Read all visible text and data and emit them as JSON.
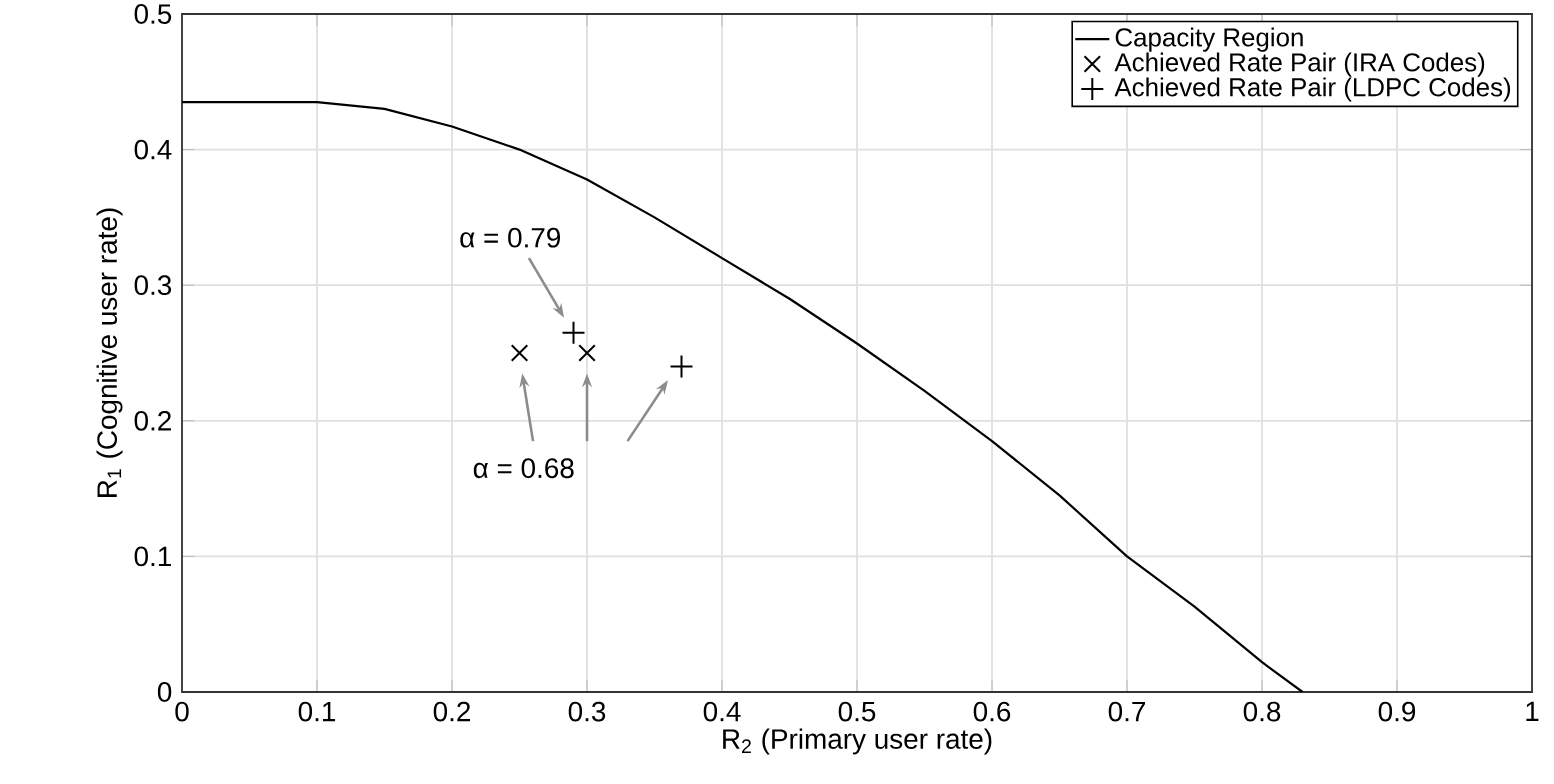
{
  "chart_data": {
    "type": "line",
    "xlabel": "R$_{2}$ (Primary user rate)",
    "ylabel": "R$_{1}$ (Cognitive user rate)",
    "xlim": [
      0,
      1
    ],
    "ylim": [
      0,
      0.5
    ],
    "xticks": [
      0,
      0.1,
      0.2,
      0.3,
      0.4,
      0.5,
      0.6,
      0.7,
      0.8,
      0.9,
      1
    ],
    "yticks": [
      0,
      0.1,
      0.2,
      0.3,
      0.4,
      0.5
    ],
    "grid": true,
    "legend": "top right",
    "series": [
      {
        "name": "Capacity Region",
        "color": "#000000",
        "marker": "none",
        "x": [
          0,
          0.1,
          0.15,
          0.2,
          0.25,
          0.3,
          0.35,
          0.4,
          0.45,
          0.5,
          0.55,
          0.6,
          0.65,
          0.7,
          0.75,
          0.8,
          0.83
        ],
        "values": [
          0.435,
          0.435,
          0.43,
          0.417,
          0.4,
          0.378,
          0.35,
          0.32,
          0.29,
          0.257,
          0.222,
          0.185,
          0.145,
          0.1,
          0.063,
          0.022,
          0
        ]
      },
      {
        "name": "Achieved Rate Pair (IRA Codes)",
        "type": "scatter",
        "color": "#000000",
        "marker": "cross",
        "x": [
          0.25,
          0.3
        ],
        "values": [
          0.25,
          0.25
        ]
      },
      {
        "name": "Achieved Rate Pair (LDPC Codes)",
        "type": "scatter",
        "color": "#000000",
        "marker": "plus",
        "x": [
          0.29,
          0.37
        ],
        "values": [
          0.265,
          0.24
        ]
      }
    ],
    "annotations": [
      "α = 0.79",
      "α = 0.68"
    ]
  }
}
